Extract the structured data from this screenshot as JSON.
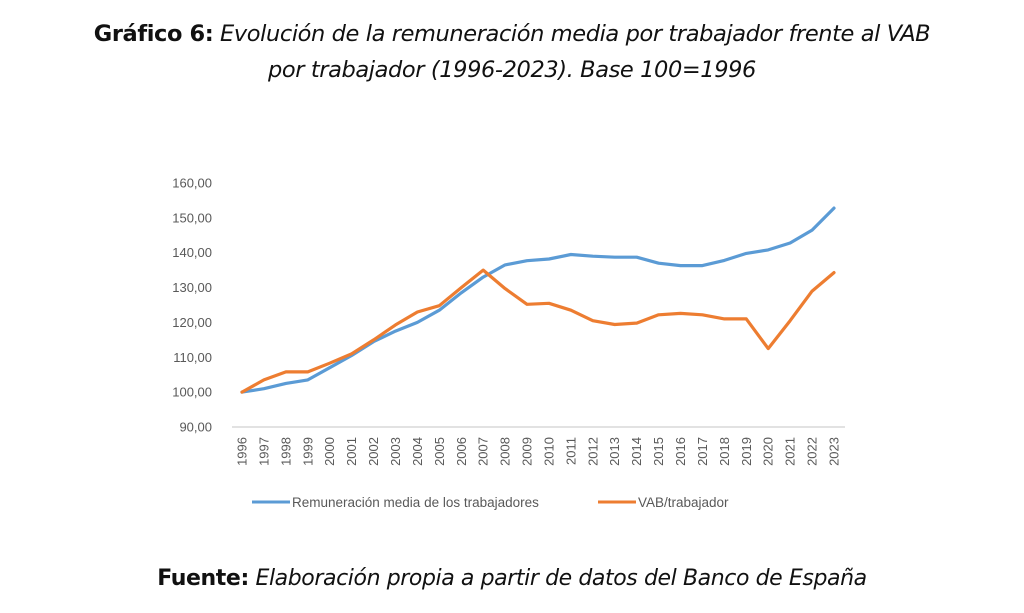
{
  "title": {
    "bold": "Gráfico 6:",
    "italic_line1": " Evolución de la remuneración media por trabajador frente al VAB",
    "italic_line2": "por trabajador (1996-2023). Base 100=1996"
  },
  "source": {
    "bold": "Fuente:",
    "italic": " Elaboración propia a partir de datos del Banco de España"
  },
  "chart_data": {
    "type": "line",
    "title": "Evolución de la remuneración media por trabajador frente al VAB por trabajador (1996-2023). Base 100=1996",
    "xlabel": "",
    "ylabel": "",
    "ylim": [
      90,
      160
    ],
    "y_ticks": [
      90,
      100,
      110,
      120,
      130,
      140,
      150,
      160
    ],
    "y_tick_labels": [
      "90,00",
      "100,00",
      "110,00",
      "120,00",
      "130,00",
      "140,00",
      "150,00",
      "160,00"
    ],
    "grid": false,
    "legend_position": "bottom",
    "categories": [
      "1996",
      "1997",
      "1998",
      "1999",
      "2000",
      "2001",
      "2002",
      "2003",
      "2004",
      "2005",
      "2006",
      "2007",
      "2008",
      "2009",
      "2010",
      "2011",
      "2012",
      "2013",
      "2014",
      "2015",
      "2016",
      "2017",
      "2018",
      "2019",
      "2020",
      "2021",
      "2022",
      "2023"
    ],
    "series": [
      {
        "name": "Remuneración media de los trabajadores",
        "color": "#5b9bd5",
        "values": [
          100,
          101,
          102.5,
          103.5,
          107,
          110.5,
          114.5,
          117.5,
          120,
          123.5,
          128.5,
          133,
          136.5,
          137.7,
          138.2,
          139.5,
          139,
          138.7,
          138.7,
          137,
          136.3,
          136.3,
          137.8,
          139.8,
          140.8,
          142.8,
          146.5,
          152.8
        ]
      },
      {
        "name": "VAB/trabajador",
        "color": "#ed7d31",
        "values": [
          100,
          103.5,
          105.8,
          105.8,
          108.3,
          111,
          115,
          119.3,
          123,
          124.8,
          130,
          135,
          129.7,
          125.2,
          125.5,
          123.5,
          120.5,
          119.4,
          119.8,
          122.2,
          122.6,
          122.2,
          121,
          121,
          112.5,
          120.5,
          129,
          134.3
        ]
      }
    ]
  }
}
